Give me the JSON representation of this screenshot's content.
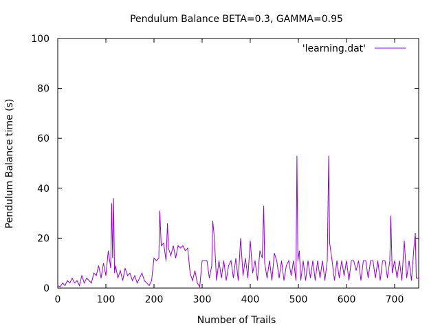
{
  "chart_data": {
    "type": "line",
    "title": "Pendulum Balance BETA=0.3, GAMMA=0.95",
    "xlabel": "Number of Trails",
    "ylabel": "Pendulum Balance time (s)",
    "xlim": [
      0,
      750
    ],
    "ylim": [
      0,
      100
    ],
    "xticks": [
      "0",
      "100",
      "200",
      "300",
      "400",
      "500",
      "600",
      "700"
    ],
    "yticks": [
      "0",
      "20",
      "40",
      "60",
      "80",
      "100"
    ],
    "grid": false,
    "legend_position": "top-right",
    "series": [
      {
        "name": "'learning.dat'",
        "color": "#9400d3",
        "x": [
          0,
          5,
          10,
          15,
          20,
          25,
          30,
          35,
          40,
          45,
          50,
          55,
          60,
          65,
          70,
          75,
          80,
          85,
          90,
          95,
          100,
          105,
          110,
          112,
          114,
          116,
          118,
          120,
          125,
          130,
          135,
          140,
          145,
          150,
          155,
          160,
          165,
          170,
          175,
          180,
          185,
          190,
          195,
          200,
          205,
          210,
          212,
          215,
          220,
          225,
          228,
          230,
          235,
          240,
          245,
          250,
          255,
          260,
          265,
          270,
          275,
          280,
          285,
          290,
          295,
          300,
          305,
          310,
          315,
          320,
          322,
          325,
          330,
          335,
          340,
          345,
          350,
          355,
          360,
          365,
          370,
          375,
          380,
          385,
          390,
          395,
          400,
          405,
          410,
          415,
          420,
          425,
          428,
          430,
          435,
          440,
          445,
          450,
          455,
          460,
          465,
          470,
          475,
          480,
          485,
          490,
          495,
          497,
          499,
          502,
          505,
          510,
          515,
          520,
          525,
          530,
          535,
          540,
          545,
          550,
          555,
          560,
          563,
          565,
          570,
          575,
          580,
          585,
          590,
          595,
          600,
          605,
          610,
          615,
          620,
          625,
          630,
          635,
          640,
          645,
          650,
          655,
          660,
          665,
          670,
          675,
          680,
          685,
          690,
          692,
          695,
          700,
          705,
          710,
          715,
          720,
          725,
          730,
          735,
          740,
          743,
          745,
          750
        ],
        "y": [
          1,
          0.5,
          2,
          1,
          3,
          2,
          4,
          2,
          3,
          1,
          5,
          2,
          4,
          3,
          2,
          6,
          5,
          9,
          4,
          10,
          5,
          15,
          8,
          34,
          12,
          36,
          6,
          9,
          4,
          7,
          3,
          8,
          5,
          6,
          3,
          5,
          2,
          4,
          6,
          3,
          2,
          1,
          3,
          12,
          11,
          12,
          31,
          17,
          18,
          11,
          26,
          16,
          13,
          17,
          12,
          17,
          16,
          17,
          15,
          16,
          6,
          3,
          7,
          2,
          0.5,
          11,
          11,
          11,
          4,
          9,
          27,
          21,
          3,
          11,
          4,
          11,
          3,
          9,
          11,
          4,
          12,
          3,
          20,
          5,
          12,
          4,
          19,
          6,
          11,
          3,
          15,
          12,
          33,
          10,
          4,
          11,
          3,
          14,
          11,
          4,
          11,
          3,
          9,
          11,
          5,
          11,
          3,
          53,
          11,
          15,
          3,
          11,
          3,
          11,
          4,
          11,
          3,
          11,
          4,
          11,
          3,
          11,
          53,
          18,
          11,
          3,
          11,
          4,
          11,
          5,
          11,
          3,
          11,
          11,
          7,
          11,
          3,
          11,
          11,
          4,
          11,
          11,
          4,
          11,
          3,
          11,
          11,
          4,
          11,
          29,
          6,
          11,
          4,
          11,
          3,
          19,
          4,
          11,
          3,
          16,
          22,
          4,
          4
        ]
      }
    ]
  }
}
